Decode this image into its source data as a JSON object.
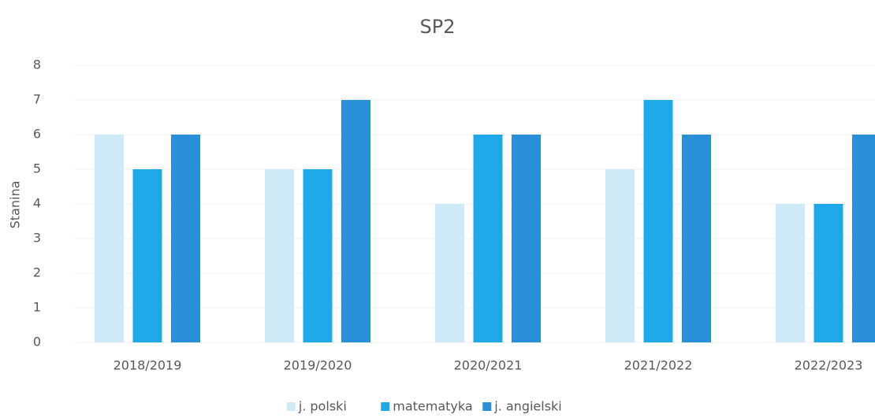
{
  "chart_data": {
    "type": "bar",
    "title": "SP2",
    "y_label": "Stanina",
    "categories": [
      "2018/2019",
      "2019/2020",
      "2020/2021",
      "2021/2022",
      "2022/2023"
    ],
    "series": [
      {
        "name": "j. polski",
        "color": "#cdeaf6",
        "values": [
          6,
          5,
          4,
          5,
          4
        ]
      },
      {
        "name": "matematyka",
        "color": "#1fa8ea",
        "values": [
          5,
          5,
          6,
          7,
          4
        ]
      },
      {
        "name": "j. angielski",
        "color": "#2a8fd9",
        "values": [
          6,
          7,
          6,
          6,
          6
        ]
      }
    ],
    "ylim": [
      0,
      8
    ],
    "yticks": [
      0,
      1,
      2,
      3,
      4,
      5,
      6,
      7,
      8
    ],
    "grid": true,
    "legend": "bottom"
  }
}
